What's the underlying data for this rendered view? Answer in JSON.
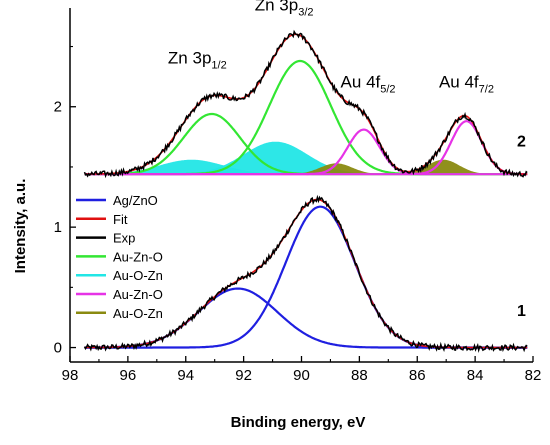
{
  "chart_data": {
    "type": "line",
    "xlabel": "Binding energy, eV",
    "ylabel": "Intensity, a.u.",
    "xlim": [
      98,
      82
    ],
    "ylim": [
      -0.12,
      2.82
    ],
    "x_reversed": true,
    "x_ticks": [
      "98",
      "96",
      "94",
      "92",
      "90",
      "88",
      "86",
      "84",
      "82"
    ],
    "x_tick_values": [
      98,
      96,
      94,
      92,
      90,
      88,
      86,
      84,
      82
    ],
    "y_ticks": [
      "0",
      "1",
      "2"
    ],
    "y_tick_values": [
      0,
      1,
      2
    ],
    "legend": [
      {
        "label": "Ag/ZnO",
        "color": "#1f1fe0"
      },
      {
        "label": "Fit",
        "color": "#e01010"
      },
      {
        "label": "Exp",
        "color": "#000000"
      },
      {
        "label": "Au-Zn-O",
        "color": "#33e633"
      },
      {
        "label": "Au-O-Zn",
        "color": "#22e6e6"
      },
      {
        "label": "Au-Zn-O",
        "color": "#e633e6"
      },
      {
        "label": "Au-O-Zn",
        "color": "#8a8a10"
      }
    ],
    "legend_position": "left-middle",
    "annotations": {
      "peaks": [
        {
          "main": "Zn 3p",
          "sub": "1/2",
          "x": 93.6,
          "y": 2.36
        },
        {
          "main": "Zn 3p",
          "sub": "3/2",
          "x": 90.6,
          "y": 2.8
        },
        {
          "main": "Au 4f",
          "sub": "5/2",
          "x": 87.7,
          "y": 2.16
        },
        {
          "main": "Au 4f",
          "sub": "7/2",
          "x": 84.3,
          "y": 2.16
        }
      ],
      "curve_numbers": [
        {
          "text": "2",
          "x": 82.4,
          "y": 1.67
        },
        {
          "text": "1",
          "x": 82.4,
          "y": 0.26
        }
      ]
    },
    "spectrum_1": {
      "baseline": 0,
      "components": [
        {
          "name": "Ag/ZnO",
          "color": "#1f1fe0",
          "center": 89.35,
          "height": 1.17,
          "fwhm": 2.8
        },
        {
          "name": "Ag/ZnO",
          "color": "#1f1fe0",
          "center": 92.2,
          "height": 0.49,
          "fwhm": 3.2
        }
      ]
    },
    "spectrum_2": {
      "baseline": 1.44,
      "components": [
        {
          "name": "Au-Zn-O",
          "color": "#33e633",
          "type": "line",
          "center": 93.1,
          "height": 0.5,
          "fwhm": 2.3
        },
        {
          "name": "Au-Zn-O",
          "color": "#33e633",
          "type": "line",
          "center": 90.05,
          "height": 0.94,
          "fwhm": 2.5
        },
        {
          "name": "Au-O-Zn",
          "color": "#22e6e6",
          "type": "area",
          "center": 93.8,
          "height": 0.12,
          "fwhm": 2.6
        },
        {
          "name": "Au-O-Zn",
          "color": "#22e6e6",
          "type": "area",
          "center": 90.9,
          "height": 0.27,
          "fwhm": 2.6
        },
        {
          "name": "Au-Zn-O",
          "color": "#e633e6",
          "type": "line",
          "center": 87.85,
          "height": 0.37,
          "fwhm": 1.3
        },
        {
          "name": "Au-Zn-O",
          "color": "#e633e6",
          "type": "line",
          "center": 84.3,
          "height": 0.44,
          "fwhm": 1.25
        },
        {
          "name": "Au-O-Zn",
          "color": "#8a8a10",
          "type": "area",
          "center": 88.8,
          "height": 0.09,
          "fwhm": 1.3
        },
        {
          "name": "Au-O-Zn",
          "color": "#8a8a10",
          "type": "area",
          "center": 85.1,
          "height": 0.12,
          "fwhm": 1.3
        }
      ]
    },
    "x_range_data": [
      97.5,
      82.2
    ],
    "colors": {
      "fit": "#e01010",
      "exp": "#000000",
      "axis": "#000000"
    }
  }
}
